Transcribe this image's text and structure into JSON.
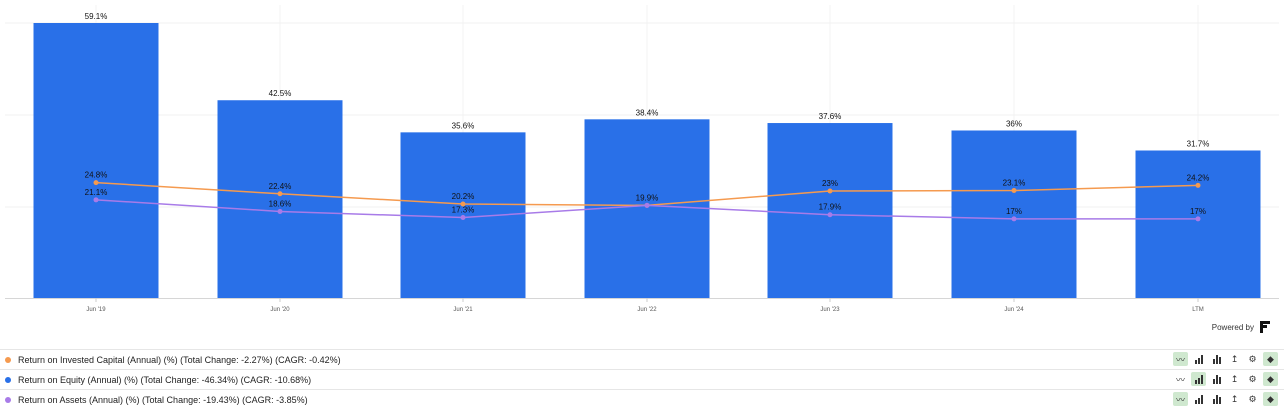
{
  "chart_data": {
    "type": "bar+line",
    "categories": [
      "Jun '19",
      "Jun '20",
      "Jun '21",
      "Jun '22",
      "Jun '23",
      "Jun '24",
      "LTM"
    ],
    "series": [
      {
        "name": "Return on Equity (Annual) (%)",
        "type": "bar",
        "color": "#2970e8",
        "values": [
          59.1,
          42.5,
          35.6,
          38.4,
          37.6,
          36,
          31.7
        ],
        "labels": [
          "59.1%",
          "42.5%",
          "35.6%",
          "38.4%",
          "37.6%",
          "36%",
          "31.7%"
        ]
      },
      {
        "name": "Return on Invested Capital (Annual) (%)",
        "type": "line",
        "color": "#f59a4f",
        "values": [
          24.8,
          22.4,
          20.2,
          19.9,
          23,
          23.1,
          24.2
        ],
        "labels": [
          "24.8%",
          "22.4%",
          "20.2%",
          "19.9%",
          "23%",
          "23.1%",
          "24.2%"
        ]
      },
      {
        "name": "Return on Assets (Annual) (%)",
        "type": "line",
        "color": "#a87be8",
        "values": [
          21.1,
          18.6,
          17.3,
          19.9,
          17.9,
          17,
          17
        ],
        "labels": [
          "21.1%",
          "18.6%",
          "17.3%",
          "",
          "17.9%",
          "17%",
          "17%"
        ]
      }
    ],
    "ylim": [
      0,
      59.1
    ],
    "grid": true
  },
  "footer": {
    "powered_by": "Powered by"
  },
  "legend": [
    {
      "text": "Return on Invested Capital (Annual) (%) (Total Change: -2.27%) (CAGR: -0.42%)",
      "color": "#f59a4f"
    },
    {
      "text": "Return on Equity (Annual) (%) (Total Change: -46.34%) (CAGR: -10.68%)",
      "color": "#2970e8"
    },
    {
      "text": "Return on Assets (Annual) (%) (Total Change: -19.43%) (CAGR: -3.85%)",
      "color": "#a87be8"
    }
  ],
  "tool_icons": [
    "line-chart-icon",
    "bar-chart-icon",
    "stacked-bar-icon",
    "axis-icon",
    "gear-icon",
    "tag-icon"
  ]
}
